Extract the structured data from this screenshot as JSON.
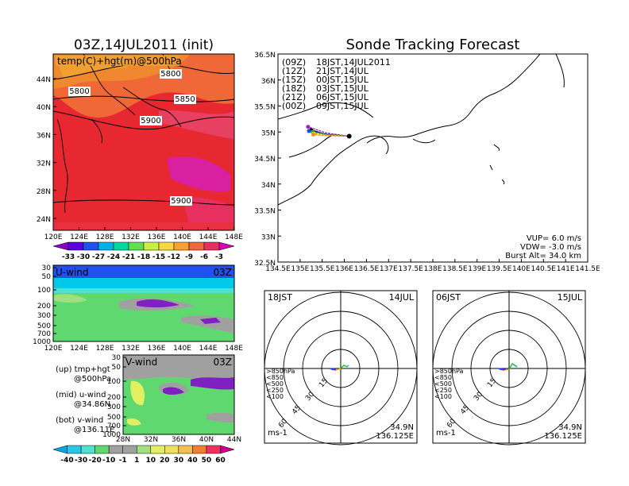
{
  "map_panel": {
    "title": "03Z,14JUL2011 (init)",
    "label": "temp(C)+hgt(m)@500hPa",
    "lat_ticks": [
      "44N",
      "40N",
      "36N",
      "32N",
      "28N",
      "24N"
    ],
    "lon_ticks": [
      "120E",
      "124E",
      "128E",
      "132E",
      "136E",
      "140E",
      "144E",
      "148E"
    ],
    "contour_labels": [
      "5800",
      "5800",
      "5850",
      "5900",
      "5900"
    ],
    "colorbar_ticks": [
      "-33",
      "-30",
      "-27",
      "-24",
      "-21",
      "-18",
      "-15",
      "-12",
      "-9",
      "-6",
      "-3"
    ],
    "colorbar_colors": [
      "#8a00c8",
      "#5a00e0",
      "#2050f0",
      "#00b0e8",
      "#00d8a0",
      "#60e050",
      "#c8f040",
      "#f8d840",
      "#f8a030",
      "#f06838",
      "#e83060",
      "#d800b0"
    ]
  },
  "u_panel": {
    "label": "U-wind",
    "time": "03Z",
    "p_ticks": [
      "30",
      "50",
      "100",
      "200",
      "300",
      "500",
      "700",
      "1000"
    ],
    "lon_ticks": [
      "120E",
      "124E",
      "128E",
      "132E",
      "136E",
      "140E",
      "144E",
      "148E"
    ]
  },
  "v_panel": {
    "label": "V-wind",
    "time": "03Z",
    "p_ticks": [
      "30",
      "50",
      "100",
      "200",
      "300",
      "500",
      "700",
      "1000"
    ],
    "lat_ticks": [
      "28N",
      "32N",
      "36N",
      "40N",
      "44N"
    ]
  },
  "notes": {
    "up": "(up) tmp+hgt",
    "up_val": "@500hPa",
    "mid": "(mid) u-wind",
    "mid_val": "@34.86N",
    "bot": "(bot) v-wind",
    "bot_val": "@136.11E"
  },
  "wind_colorbar": {
    "ticks": [
      "-40",
      "-30",
      "-20",
      "-10",
      "-1",
      "1",
      "10",
      "20",
      "30",
      "40",
      "50",
      "60"
    ],
    "colors": [
      "#00a8e8",
      "#28c8e8",
      "#50e0d0",
      "#60d870",
      "#a0a0a0",
      "#a0a0a0",
      "#a0e080",
      "#e0f060",
      "#f0e060",
      "#f0c050",
      "#f08030",
      "#f03060",
      "#c8008c"
    ]
  },
  "forecast": {
    "title": "Sonde Tracking Forecast",
    "legend": [
      {
        "run": "(09Z)",
        "time": "18JST,14JUL2011",
        "color": "#000000"
      },
      {
        "run": "(12Z)",
        "time": "21JST,14JUL",
        "color": "#a020c0"
      },
      {
        "run": "(15Z)",
        "time": "00JST,15JUL",
        "color": "#2040ff"
      },
      {
        "run": "(18Z)",
        "time": "03JST,15JUL",
        "color": "#20b020"
      },
      {
        "run": "(21Z)",
        "time": "06JST,15JUL",
        "color": "#d0d000"
      },
      {
        "run": "(00Z)",
        "time": "09JST,15JUL",
        "color": "#f09020"
      }
    ],
    "lat_ticks": [
      "36.5N",
      "36N",
      "35.5N",
      "35N",
      "34.5N",
      "34N",
      "33.5N",
      "33N",
      "32.5N"
    ],
    "lon_ticks": [
      "134.5E",
      "135E",
      "135.5E",
      "136E",
      "136.5E",
      "137E",
      "137.5E",
      "138E",
      "138.5E",
      "139E",
      "139.5E",
      "140E",
      "140.5E",
      "141E",
      "141.5E"
    ],
    "vup": "VUP= 6.0 m/s",
    "vdw": "VDW= -3.0 m/s",
    "burst": "Burst Alt= 34.0 km"
  },
  "hodograph_left": {
    "time": "18JST",
    "date": "14JUL",
    "ring_labels": [
      "15",
      "30",
      "45",
      "60"
    ],
    "levels": [
      ">850hPa",
      "<850",
      "<500",
      "<250",
      "<100"
    ],
    "level_colors": [
      "#e02020",
      "#f0a000",
      "#20c020",
      "#00b0e0",
      "#2040ff"
    ],
    "unit": "ms-1",
    "lat": "34.9N",
    "lon": "136.125E"
  },
  "hodograph_right": {
    "time": "06JST",
    "date": "15JUL",
    "ring_labels": [
      "15",
      "30",
      "45",
      "60"
    ],
    "levels": [
      ">850hPa",
      "<850",
      "<500",
      "<250",
      "<100"
    ],
    "level_colors": [
      "#e02020",
      "#f0a000",
      "#20c020",
      "#00b0e0",
      "#2040ff"
    ],
    "unit": "ms-1",
    "lat": "34.9N",
    "lon": "136.125E"
  },
  "chart_data": [
    {
      "type": "heatmap",
      "title": "03Z,14JUL2011 (init)",
      "variable": "temp(C)+hgt(m)@500hPa",
      "xlim": [
        "120E",
        "148E"
      ],
      "ylim": [
        "24N",
        "44N"
      ],
      "contours": [
        5800,
        5850,
        5900
      ]
    },
    {
      "type": "heatmap",
      "title": "U-wind 03Z",
      "xlim": [
        "120E",
        "148E"
      ],
      "ylim": [
        1000,
        30
      ]
    },
    {
      "type": "heatmap",
      "title": "V-wind 03Z",
      "xlim": [
        "28N",
        "44N"
      ],
      "ylim": [
        1000,
        30
      ]
    },
    {
      "type": "line",
      "title": "Sonde Tracking Forecast",
      "xlim": [
        134.5,
        141.5
      ],
      "ylim": [
        32.5,
        36.5
      ],
      "series": [
        {
          "name": "(09Z) 18JST,14JUL2011",
          "x": [
            136.11,
            135.6,
            135.25
          ],
          "y": [
            34.92,
            34.95,
            35.04
          ]
        },
        {
          "name": "(12Z) 21JST,14JUL",
          "x": [
            136.11,
            135.6,
            135.18
          ],
          "y": [
            34.92,
            34.98,
            35.1
          ]
        },
        {
          "name": "(15Z) 00JST,15JUL",
          "x": [
            136.11,
            135.6,
            135.2
          ],
          "y": [
            34.92,
            34.96,
            35.02
          ]
        },
        {
          "name": "(18Z) 03JST,15JUL",
          "x": [
            136.11,
            135.6,
            135.28
          ],
          "y": [
            34.92,
            34.95,
            35.0
          ]
        },
        {
          "name": "(21Z) 06JST,15JUL",
          "x": [
            136.11,
            135.6,
            135.3
          ],
          "y": [
            34.92,
            34.94,
            34.97
          ]
        },
        {
          "name": "(00Z) 09JST,15JUL",
          "x": [
            136.11,
            135.6,
            135.3
          ],
          "y": [
            34.92,
            34.93,
            34.95
          ]
        }
      ]
    }
  ]
}
